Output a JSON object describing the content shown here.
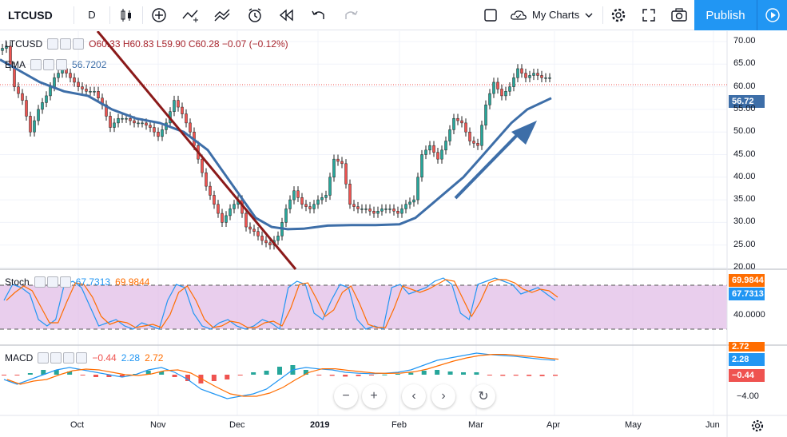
{
  "toolbar": {
    "symbol": "LTCUSD",
    "interval": "D",
    "my_charts": "My Charts",
    "publish": "Publish"
  },
  "legend": {
    "symbol": "LTCUSD",
    "ohlc": "O60.33  H60.83  L59.90  C60.28  −0.07 (−0.12%)",
    "ema_label": "EMA",
    "ema_value": "56.7202",
    "stoch_label": "Stoch",
    "stoch_k": "67.7313",
    "stoch_d": "69.9844",
    "macd_label": "MACD",
    "macd_hist": "−0.44",
    "macd_line": "2.28",
    "macd_signal": "2.72"
  },
  "price_axis": {
    "ticks": [
      "70.00",
      "65.00",
      "60.00",
      "55.00",
      "50.00",
      "45.00",
      "40.00",
      "35.00",
      "30.00",
      "25.00",
      "20.00"
    ],
    "tag_ema": "56.72",
    "stoch_tags": [
      "69.9844",
      "67.7313"
    ],
    "stoch_tick": "40.0000",
    "macd_tags": [
      "2.72",
      "2.28",
      "−0.44"
    ],
    "macd_tick": "−4.00"
  },
  "time_axis": [
    "Oct",
    "Nov",
    "Dec",
    "2019",
    "Feb",
    "Mar",
    "Apr",
    "May",
    "Jun"
  ],
  "colors": {
    "up": "#26a69a",
    "down": "#ef5350",
    "ema": "#2962ff",
    "stoch_bg": "#e1bee7",
    "publish": "#2196f3",
    "trend_down": "#8b0000",
    "trend_up": "#3a6db0"
  },
  "chart_data": {
    "type": "candlestick",
    "price_series_ema_approx": [
      [
        0,
        66
      ],
      [
        20,
        64
      ],
      [
        50,
        61
      ],
      [
        80,
        59
      ],
      [
        110,
        58
      ],
      [
        140,
        55
      ],
      [
        170,
        53
      ],
      [
        200,
        52
      ],
      [
        230,
        50
      ],
      [
        260,
        46
      ],
      [
        280,
        41
      ],
      [
        300,
        36
      ],
      [
        320,
        31
      ],
      [
        340,
        29
      ],
      [
        360,
        28.5
      ],
      [
        380,
        28.6
      ],
      [
        410,
        29.3
      ],
      [
        440,
        29.4
      ],
      [
        470,
        29.4
      ],
      [
        500,
        29.6
      ],
      [
        520,
        31
      ],
      [
        540,
        34
      ],
      [
        560,
        37
      ],
      [
        580,
        40
      ],
      [
        600,
        44
      ],
      [
        620,
        48
      ],
      [
        640,
        52
      ],
      [
        660,
        55
      ],
      [
        690,
        57.5
      ]
    ],
    "candles_close_approx": [
      [
        5,
        69
      ],
      [
        15,
        60
      ],
      [
        25,
        57
      ],
      [
        35,
        50
      ],
      [
        45,
        55
      ],
      [
        55,
        58
      ],
      [
        65,
        62
      ],
      [
        75,
        64
      ],
      [
        85,
        62
      ],
      [
        95,
        60
      ],
      [
        105,
        59
      ],
      [
        115,
        59
      ],
      [
        125,
        56
      ],
      [
        135,
        51
      ],
      [
        145,
        53
      ],
      [
        155,
        53
      ],
      [
        165,
        52
      ],
      [
        175,
        52
      ],
      [
        185,
        51
      ],
      [
        195,
        49
      ],
      [
        205,
        52
      ],
      [
        215,
        57
      ],
      [
        225,
        54
      ],
      [
        235,
        50
      ],
      [
        245,
        44
      ],
      [
        255,
        38
      ],
      [
        265,
        34
      ],
      [
        275,
        30
      ],
      [
        285,
        33
      ],
      [
        295,
        35
      ],
      [
        305,
        29
      ],
      [
        315,
        28
      ],
      [
        325,
        26
      ],
      [
        335,
        25
      ],
      [
        345,
        27
      ],
      [
        355,
        33
      ],
      [
        365,
        37
      ],
      [
        375,
        34
      ],
      [
        385,
        33
      ],
      [
        395,
        35
      ],
      [
        405,
        36
      ],
      [
        415,
        44
      ],
      [
        425,
        43
      ],
      [
        435,
        34
      ],
      [
        445,
        33
      ],
      [
        455,
        33
      ],
      [
        465,
        32
      ],
      [
        475,
        33
      ],
      [
        485,
        33
      ],
      [
        495,
        32
      ],
      [
        505,
        34
      ],
      [
        515,
        35
      ],
      [
        525,
        45
      ],
      [
        535,
        47
      ],
      [
        545,
        44
      ],
      [
        555,
        48
      ],
      [
        565,
        53
      ],
      [
        575,
        52
      ],
      [
        585,
        48
      ],
      [
        595,
        47
      ],
      [
        605,
        56
      ],
      [
        615,
        61
      ],
      [
        625,
        58
      ],
      [
        635,
        60
      ],
      [
        645,
        64
      ],
      [
        655,
        62
      ],
      [
        665,
        63
      ],
      [
        675,
        62
      ],
      [
        685,
        62
      ]
    ]
  }
}
